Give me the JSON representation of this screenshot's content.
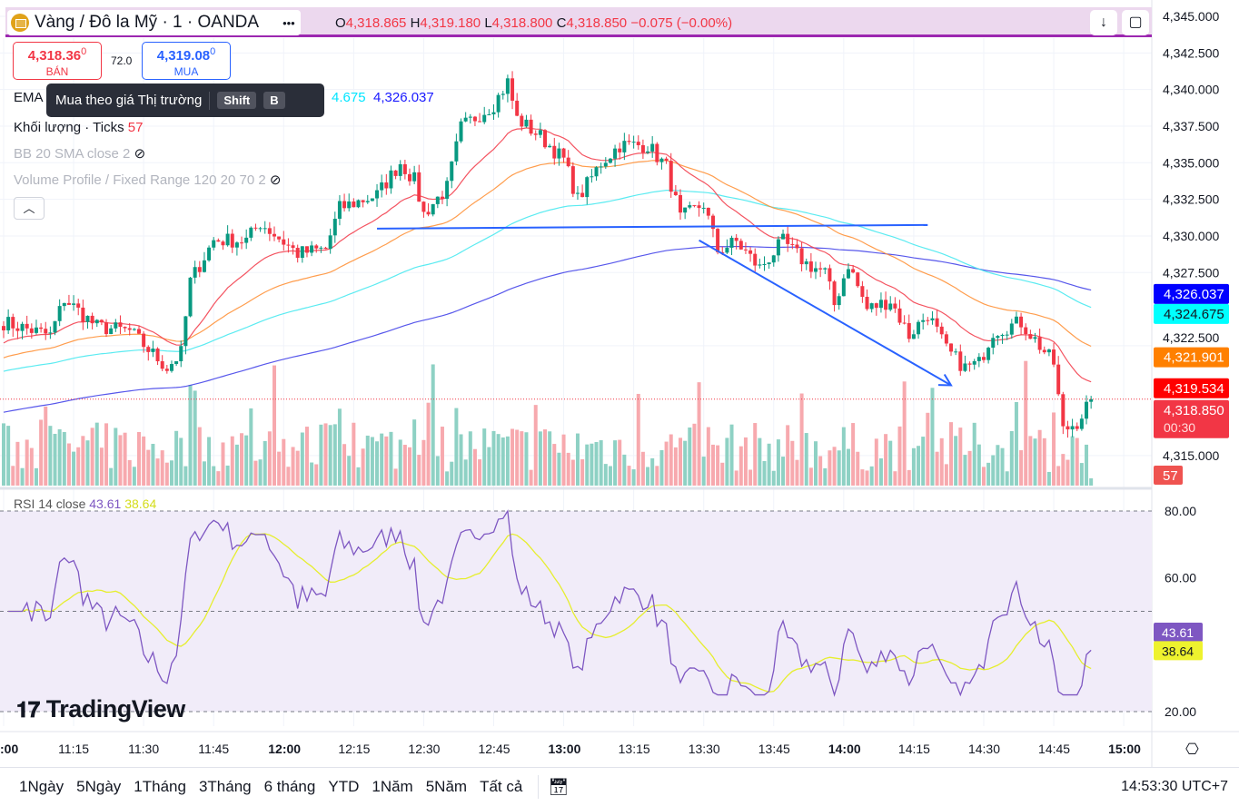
{
  "header": {
    "symbol": "Vàng / Đô la Mỹ · 1 · OANDA",
    "o_label": "O",
    "open": "4,318.865",
    "h_label": "H",
    "high": "4,319.180",
    "l_label": "L",
    "low": "4,318.800",
    "c_label": "C",
    "close": "4,318.850",
    "change": "−0.075 (−0.00%)",
    "more": "•••"
  },
  "trade": {
    "sell_price": "4,318.36",
    "sell_sup": "0",
    "sell_label": "BÁN",
    "spread": "72.0",
    "buy_price": "4,319.08",
    "buy_sup": "0",
    "buy_label": "MUA"
  },
  "tooltip": {
    "text": "Mua theo giá Thị trường",
    "key1": "Shift",
    "key2": "B"
  },
  "legend": {
    "ema": "EMA",
    "ema_v3": "4.675",
    "ema_v4": "4,326.037",
    "volume": "Khối lượng · Ticks",
    "volume_val": "57",
    "bb": "BB 20 SMA close 2",
    "vp": "Volume Profile / Fixed Range 120 20 70 2",
    "rsi": "RSI 14 close",
    "rsi_val": "43.61",
    "rsi_ma": "38.64"
  },
  "colors": {
    "up": "#089981",
    "down": "#f23645",
    "ema20": "#f23645",
    "ema50": "#ff8c2e",
    "ema100": "#3ee8ee",
    "ema200": "#3a3ae8",
    "rsi": "#7e57c2",
    "rsi_ma": "#e6ee2e"
  },
  "chart_data": {
    "type": "candlestick",
    "price_ticks": [
      "4,345.000",
      "4,342.500",
      "4,340.000",
      "4,337.500",
      "4,335.000",
      "4,332.500",
      "4,330.000",
      "4,327.500",
      "4,322.500",
      "4,315.000"
    ],
    "price_tick_values": [
      4345,
      4342.5,
      4340,
      4337.5,
      4335,
      4332.5,
      4330,
      4327.5,
      4322.5,
      4315
    ],
    "time_ticks": [
      ":00",
      "11:15",
      "11:30",
      "11:45",
      "12:00",
      "12:15",
      "12:30",
      "12:45",
      "13:00",
      "13:15",
      "13:30",
      "13:45",
      "14:00",
      "14:15",
      "14:30",
      "14:45",
      "15:00"
    ],
    "anchors_minutes_from_1100": [
      0,
      10,
      13,
      20,
      27,
      35,
      38,
      40,
      45,
      52,
      55,
      63,
      69,
      72,
      80,
      85,
      88,
      90,
      95,
      98,
      105,
      108,
      110,
      115,
      120,
      123,
      128,
      132,
      138,
      142,
      145,
      150,
      153,
      157,
      162,
      167,
      172,
      176,
      178,
      181,
      185,
      190,
      194,
      198,
      202,
      206,
      209,
      212,
      218,
      222,
      225,
      227,
      230,
      233
    ],
    "anchors_price": [
      4324.1,
      4323.2,
      4325.7,
      4323.8,
      4323.5,
      4321.0,
      4322.0,
      4326.9,
      4329.7,
      4329.7,
      4330.9,
      4328.8,
      4329.1,
      4331.9,
      4332.8,
      4335.0,
      4333.8,
      4331.5,
      4333.3,
      4337.4,
      4339.0,
      4340.5,
      4338.0,
      4336.8,
      4335.2,
      4332.5,
      4335.0,
      4336.2,
      4336.2,
      4334.7,
      4331.2,
      4332.2,
      4329.0,
      4329.6,
      4327.8,
      4329.6,
      4328.1,
      4327.5,
      4325.3,
      4328.1,
      4325.0,
      4325.6,
      4323.2,
      4324.7,
      4322.2,
      4321.0,
      4321.3,
      4323.5,
      4324.1,
      4322.5,
      4321.3,
      4316.7,
      4317.3,
      4318.85
    ],
    "ema_last": {
      "ema20": "4,319.534",
      "ema50": "4,321.901",
      "ema100": "4,324.675",
      "ema200": "4,326.037"
    },
    "ema_seed": {
      "ema20": 4322.6,
      "ema50": 4321.6,
      "ema100": 4320.7,
      "ema200": 4317.9
    },
    "last_price": "4,318.850",
    "countdown": "00:30",
    "volume_last": "57",
    "rsi_ticks": [
      "80.00",
      "60.00",
      "20.00"
    ],
    "rsi_last": "43.61",
    "rsi_ma_last": "38.64",
    "trendlines": [
      {
        "from": [
          80,
          4330.5
        ],
        "to": [
          198,
          4330.75
        ]
      },
      {
        "from": [
          149,
          4329.7
        ],
        "to": [
          203,
          4319.8
        ],
        "arrow": true
      }
    ]
  },
  "watermark": "TradingView",
  "ranges": [
    "1Ngày",
    "5Ngày",
    "1Tháng",
    "3Tháng",
    "6 tháng",
    "YTD",
    "1Năm",
    "5Năm",
    "Tất cả"
  ],
  "clock": "14:53:30 UTC+7"
}
